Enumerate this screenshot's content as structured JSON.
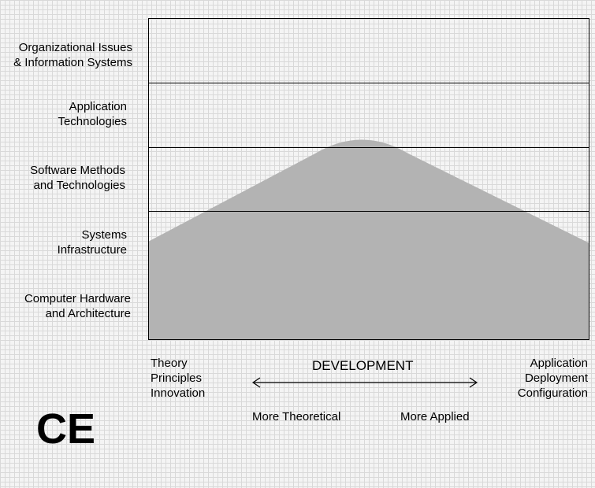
{
  "rows": [
    {
      "label": "Organizational Issues\n& Information Systems"
    },
    {
      "label": "Application\nTechnologies"
    },
    {
      "label": "Software Methods\nand Technologies"
    },
    {
      "label": "Systems\nInfrastructure"
    },
    {
      "label": "Computer Hardware\nand Architecture"
    }
  ],
  "bottom": {
    "left_text": "Theory\nPrinciples\nInnovation",
    "center_label": "DEVELOPMENT",
    "right_text": "Application\nDeployment\nConfiguration",
    "more_theoretical": "More Theoretical",
    "more_applied": "More Applied"
  },
  "discipline": "CE",
  "colors": {
    "shape_fill": "#b3b3b3",
    "frame": "#000000"
  }
}
